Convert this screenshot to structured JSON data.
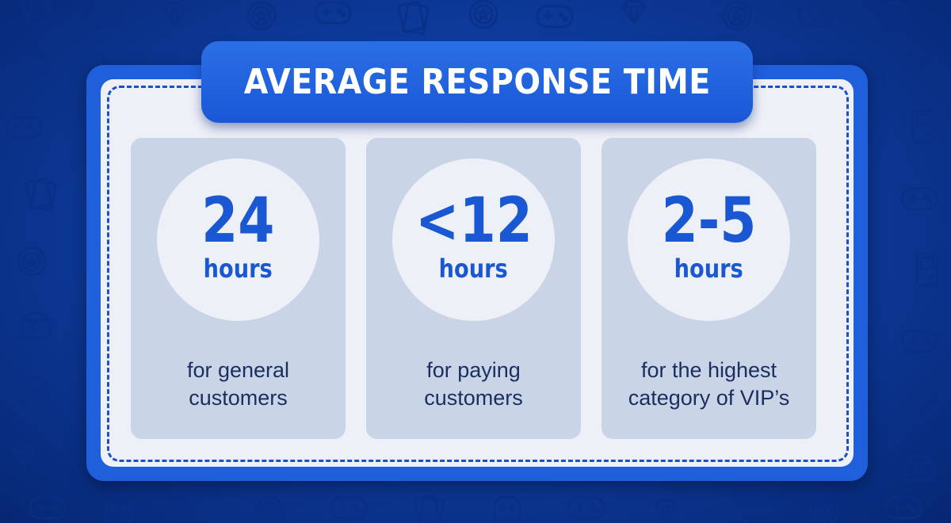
{
  "title": "AVERAGE RESPONSE TIME",
  "cards": [
    {
      "value": "24",
      "unit": "hours",
      "desc_line1": "for general",
      "desc_line2": "customers"
    },
    {
      "value": "<12",
      "unit": "hours",
      "desc_line1": "for paying",
      "desc_line2": "customers"
    },
    {
      "value": "2-5",
      "unit": "hours",
      "desc_line1": "for the highest",
      "desc_line2": "category of VIP’s"
    }
  ],
  "colors": {
    "background": "#0e3c9f",
    "accent": "#1a57d2",
    "panel": "#1f5fdb",
    "inner": "#eef0f7",
    "card": "#c9d4e7",
    "text": "#1b2e5e"
  },
  "icons": [
    "gamepad-icon",
    "game-card-icon",
    "sword-icon",
    "star-coin-icon",
    "vr-headset-icon",
    "treasure-chest-icon",
    "gem-icon",
    "ghost-icon",
    "handheld-console-icon"
  ]
}
